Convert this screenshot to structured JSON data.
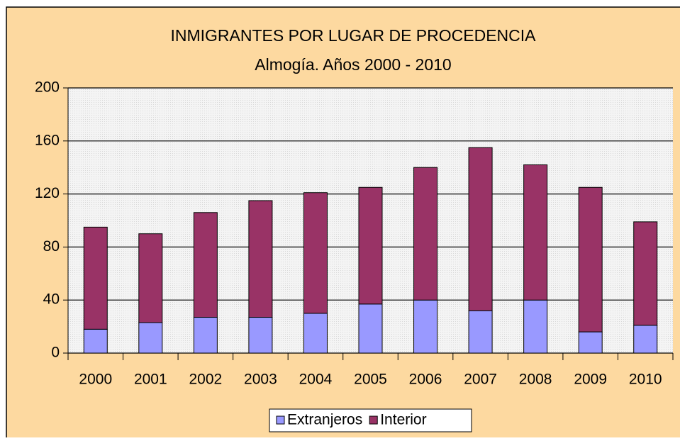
{
  "chart_data": {
    "type": "stacked_bar",
    "title": "INMIGRANTES POR LUGAR DE PROCEDENCIA",
    "subtitle": "Almogía. Años 2000 - 2010",
    "categories": [
      "2000",
      "2001",
      "2002",
      "2003",
      "2004",
      "2005",
      "2006",
      "2007",
      "2008",
      "2009",
      "2010"
    ],
    "series": [
      {
        "name": "Extranjeros",
        "color": "#9999ff",
        "values": [
          18,
          23,
          27,
          27,
          30,
          37,
          40,
          32,
          40,
          16,
          21
        ]
      },
      {
        "name": "Interior",
        "color": "#993366",
        "values": [
          77,
          67,
          79,
          88,
          91,
          88,
          100,
          123,
          102,
          109,
          78
        ]
      }
    ],
    "ylim": [
      0,
      200
    ],
    "yticks": [
      0,
      40,
      80,
      120,
      160,
      200
    ],
    "grid": true,
    "legend": "bottom"
  }
}
